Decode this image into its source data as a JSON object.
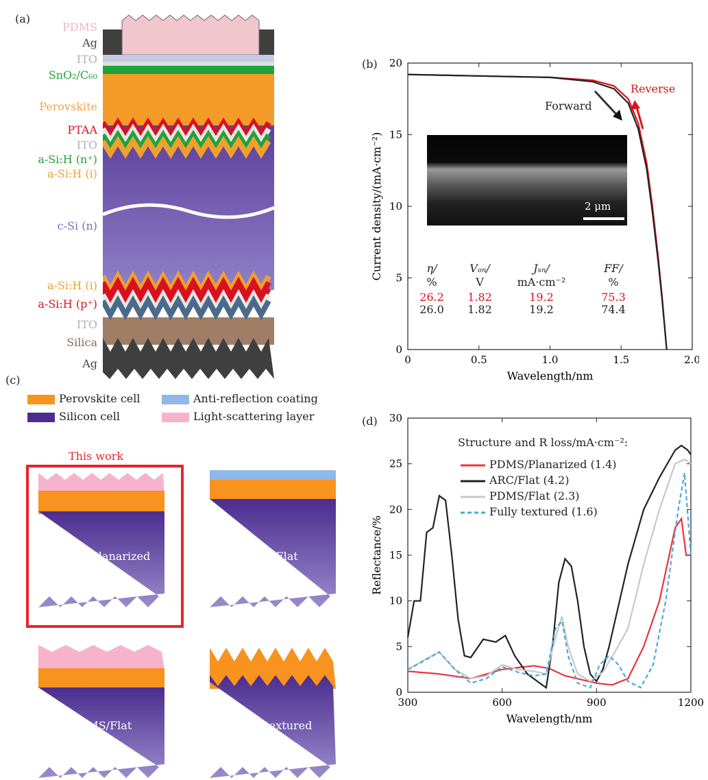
{
  "panel_a": {
    "tag": "(a)",
    "layers": [
      {
        "key": "pdms",
        "label": "PDMS",
        "color": "#f2c6cf"
      },
      {
        "key": "ag_top",
        "label": "Ag",
        "color": "#555555"
      },
      {
        "key": "ito_top",
        "label": "ITO",
        "color": "#b5b5b5"
      },
      {
        "key": "sno2",
        "label": "SnO₂/C₆₀",
        "color": "#1fa33a"
      },
      {
        "key": "perovskite",
        "label": "Perovskite",
        "color": "#f5a23c"
      },
      {
        "key": "ptaa",
        "label": "PTAA",
        "color": "#d9101f"
      },
      {
        "key": "ito_mid",
        "label": "ITO",
        "color": "#b5b5b5"
      },
      {
        "key": "asih_n",
        "label": "a-Si:H (n⁺)",
        "color": "#1fa33a"
      },
      {
        "key": "asih_i_top",
        "label": "a-Si:H (i)",
        "color": "#f0a030"
      },
      {
        "key": "csi",
        "label": "c-Si (n)",
        "color": "#8a7bc4"
      },
      {
        "key": "asih_i_bot",
        "label": "a-Si:H (i)",
        "color": "#f0a030"
      },
      {
        "key": "asih_p",
        "label": "a-Si:H (p⁺)",
        "color": "#d9101f"
      },
      {
        "key": "ito_bot",
        "label": "ITO",
        "color": "#b5b5b5"
      },
      {
        "key": "silica",
        "label": "Silica",
        "color": "#a07e66"
      },
      {
        "key": "ag_bot",
        "label": "Ag",
        "color": "#555555"
      }
    ]
  },
  "panel_b": {
    "tag": "(b)",
    "xlabel": "Wavelength/nm",
    "ylabel": "Current density/(mA·cm⁻²)",
    "forward_label": "Forward",
    "reverse_label": "Reverse",
    "scale_label": "2 μm",
    "table": {
      "headers": [
        [
          "η/",
          "%"
        ],
        [
          "Vₒₙ/",
          "V"
        ],
        [
          "Jₛₙ/",
          "mA·cm⁻²"
        ],
        [
          "FF/",
          "%"
        ]
      ],
      "reverse_row": [
        "26.2",
        "1.82",
        "19.2",
        "75.3"
      ],
      "forward_row": [
        "26.0",
        "1.82",
        "19.2",
        "74.4"
      ],
      "reverse_color": "#e0101a",
      "forward_color": "#222222"
    }
  },
  "panel_c": {
    "tag": "(c)",
    "legend": [
      {
        "label": "Perovskite cell",
        "color": "#f7931e"
      },
      {
        "label": "Anti-reflection coating",
        "color": "#8fb8e6"
      },
      {
        "label": "Silicon cell",
        "color": "#4b2d8f"
      },
      {
        "label": "Light-scattering layer",
        "color": "#f7b3cc"
      }
    ],
    "this_work": "This work",
    "this_work_color": "#e8242b",
    "cells": [
      {
        "caption": "PDMS/Planarized"
      },
      {
        "caption": "ARC/Flat"
      },
      {
        "caption": "PDMS/Flat"
      },
      {
        "caption": "Fully textured"
      }
    ]
  },
  "panel_d": {
    "tag": "(d)",
    "legend_title": "Structure and R loss/mA·cm⁻²:"
  },
  "chart_data": [
    {
      "type": "line",
      "panel": "(b)",
      "xlabel": "Wavelength/nm",
      "ylabel": "Current density/(mA·cm⁻²)",
      "xlim": [
        0,
        2.0
      ],
      "ylim": [
        0,
        20
      ],
      "xticks": [
        "0",
        "0.5",
        "1.0",
        "1.5",
        "2.0"
      ],
      "yticks": [
        "0",
        "5",
        "10",
        "15",
        "20"
      ],
      "series": [
        {
          "name": "Reverse",
          "color": "#e0101a",
          "x": [
            0,
            0.5,
            1.0,
            1.3,
            1.45,
            1.55,
            1.62,
            1.68,
            1.72,
            1.76,
            1.79,
            1.82
          ],
          "y": [
            19.2,
            19.1,
            19.0,
            18.8,
            18.4,
            17.5,
            15.8,
            13.0,
            10.0,
            6.5,
            3.5,
            0
          ]
        },
        {
          "name": "Forward",
          "color": "#222222",
          "x": [
            0,
            0.5,
            1.0,
            1.3,
            1.45,
            1.55,
            1.62,
            1.68,
            1.72,
            1.76,
            1.79,
            1.82
          ],
          "y": [
            19.2,
            19.1,
            19.0,
            18.7,
            18.2,
            17.2,
            15.4,
            12.6,
            9.6,
            6.2,
            3.3,
            0
          ]
        }
      ]
    },
    {
      "type": "line",
      "panel": "(d)",
      "xlabel": "Wavelength/nm",
      "ylabel": "Reflectance/%",
      "xlim": [
        300,
        1200
      ],
      "ylim": [
        0,
        30
      ],
      "xticks": [
        "300",
        "600",
        "900",
        "1200"
      ],
      "yticks": [
        "0",
        "5",
        "10",
        "15",
        "20",
        "25",
        "30"
      ],
      "series": [
        {
          "name": "PDMS/Planarized (1.4)",
          "color": "#e8343a",
          "dash": "none",
          "x": [
            300,
            400,
            500,
            600,
            700,
            750,
            800,
            900,
            950,
            1000,
            1050,
            1100,
            1150,
            1170,
            1185,
            1200
          ],
          "y": [
            2.3,
            2.0,
            1.5,
            2.5,
            2.9,
            2.6,
            1.8,
            1.0,
            0.8,
            1.5,
            5,
            10,
            18,
            19,
            15,
            15
          ]
        },
        {
          "name": "ARC/Flat (4.2)",
          "color": "#222222",
          "dash": "none",
          "x": [
            300,
            320,
            340,
            360,
            380,
            400,
            420,
            440,
            460,
            480,
            500,
            540,
            580,
            610,
            640,
            680,
            720,
            740,
            760,
            780,
            800,
            820,
            840,
            860,
            880,
            900,
            920,
            940,
            960,
            1000,
            1050,
            1100,
            1150,
            1170,
            1190,
            1200
          ],
          "y": [
            6,
            10,
            10,
            17.5,
            18,
            21.5,
            21,
            15,
            8,
            4,
            3.8,
            5.8,
            5.5,
            6.2,
            4,
            2,
            1,
            0.5,
            5,
            12,
            14.6,
            13.8,
            10,
            5,
            2,
            1.2,
            2.5,
            5,
            8,
            14,
            20,
            23.5,
            26.5,
            27,
            26.5,
            26
          ]
        },
        {
          "name": "PDMS/Flat (2.3)",
          "color": "#c8c8c8",
          "dash": "none",
          "x": [
            300,
            350,
            400,
            450,
            500,
            550,
            600,
            650,
            700,
            740,
            770,
            790,
            810,
            840,
            880,
            920,
            960,
            1000,
            1050,
            1100,
            1150,
            1180,
            1200
          ],
          "y": [
            2.5,
            3.5,
            4.4,
            2.5,
            1.5,
            1.8,
            3,
            2.5,
            2.3,
            2,
            6,
            8.3,
            5,
            2,
            1.2,
            2.2,
            4.5,
            7,
            14,
            20,
            25,
            25.5,
            25
          ]
        },
        {
          "name": "Fully textured (1.6)",
          "color": "#4aa8dc",
          "dash": "6,4",
          "x": [
            300,
            350,
            400,
            450,
            500,
            550,
            600,
            650,
            700,
            740,
            770,
            790,
            810,
            840,
            880,
            910,
            940,
            970,
            1000,
            1040,
            1080,
            1120,
            1160,
            1180,
            1200
          ],
          "y": [
            2.5,
            3.4,
            4.4,
            2.5,
            1,
            1.5,
            2.8,
            2.2,
            1.8,
            2,
            7,
            7.8,
            4,
            1,
            0.5,
            3,
            4,
            3,
            1.2,
            0.5,
            3,
            10,
            20,
            24,
            15
          ]
        }
      ]
    }
  ]
}
